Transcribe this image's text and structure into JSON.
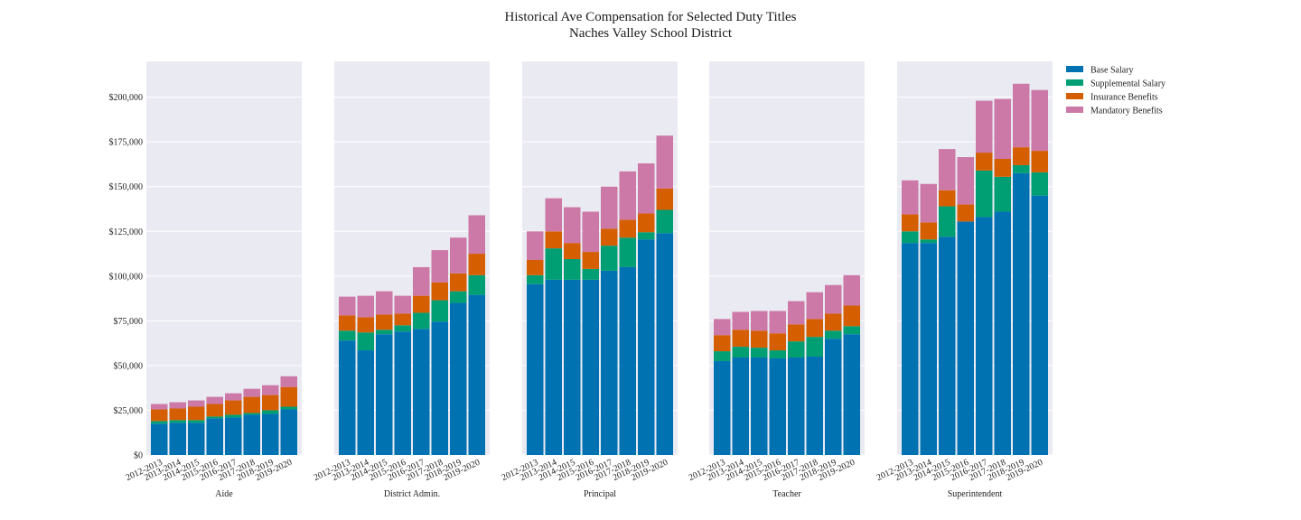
{
  "title": "Historical Ave Compensation for Selected Duty Titles",
  "subtitle": "Naches Valley School District",
  "colors": {
    "Base Salary": "#0072b2",
    "Supplemental Salary": "#009e73",
    "Insurance Benefits": "#d55e00",
    "Mandatory Benefits": "#cc79a7",
    "panel_background": "#eaeaf2",
    "grid": "#ffffff"
  },
  "chart_data": {
    "type": "bar",
    "stacked": true,
    "categories": [
      "2012-2013",
      "2013-2014",
      "2014-2015",
      "2015-2016",
      "2016-2017",
      "2017-2018",
      "2018-2019",
      "2019-2020"
    ],
    "ylim": [
      0,
      220000
    ],
    "yticks": [
      0,
      25000,
      50000,
      75000,
      100000,
      125000,
      150000,
      175000,
      200000
    ],
    "ytick_labels": [
      "$0",
      "$25,000",
      "$50,000",
      "$75,000",
      "$100,000",
      "$125,000",
      "$150,000",
      "$175,000",
      "$200,000"
    ],
    "legend": {
      "placement": "right",
      "entries": [
        "Base Salary",
        "Supplemental Salary",
        "Insurance Benefits",
        "Mandatory Benefits"
      ]
    },
    "grid": true,
    "panels": [
      {
        "xlabel": "Aide",
        "series": [
          {
            "name": "Base Salary",
            "values": [
              17500,
              18000,
              18000,
              20500,
              21000,
              22500,
              23000,
              25500
            ]
          },
          {
            "name": "Supplemental Salary",
            "values": [
              1500,
              1500,
              1500,
              1000,
              1500,
              1000,
              2000,
              1500
            ]
          },
          {
            "name": "Insurance Benefits",
            "values": [
              6500,
              6500,
              7500,
              7000,
              8000,
              9000,
              8500,
              11000
            ]
          },
          {
            "name": "Mandatory Benefits",
            "values": [
              3000,
              3500,
              3500,
              4000,
              4000,
              4500,
              5500,
              6000
            ]
          }
        ]
      },
      {
        "xlabel": "District Admin.",
        "series": [
          {
            "name": "Base Salary",
            "values": [
              64000,
              58500,
              67500,
              69000,
              70500,
              74500,
              85000,
              89500
            ]
          },
          {
            "name": "Supplemental Salary",
            "values": [
              5500,
              10000,
              2500,
              3500,
              9000,
              12000,
              6500,
              11000
            ]
          },
          {
            "name": "Insurance Benefits",
            "values": [
              8500,
              8500,
              8500,
              6500,
              9500,
              10000,
              10000,
              12000
            ]
          },
          {
            "name": "Mandatory Benefits",
            "values": [
              10500,
              12000,
              13000,
              10000,
              16000,
              18000,
              20000,
              21500
            ]
          }
        ]
      },
      {
        "xlabel": "Principal",
        "series": [
          {
            "name": "Base Salary",
            "values": [
              95500,
              98000,
              98000,
              98000,
              103000,
              105000,
              120500,
              124000
            ]
          },
          {
            "name": "Supplemental Salary",
            "values": [
              5000,
              17500,
              11500,
              6000,
              14000,
              16500,
              4000,
              13000
            ]
          },
          {
            "name": "Insurance Benefits",
            "values": [
              8500,
              9500,
              9000,
              9500,
              9500,
              10000,
              10500,
              12000
            ]
          },
          {
            "name": "Mandatory Benefits",
            "values": [
              16000,
              18500,
              20000,
              22500,
              23500,
              27000,
              28000,
              29500
            ]
          }
        ]
      },
      {
        "xlabel": "Teacher",
        "series": [
          {
            "name": "Base Salary",
            "values": [
              52500,
              54500,
              54500,
              54000,
              54500,
              55000,
              65000,
              67500
            ]
          },
          {
            "name": "Supplemental Salary",
            "values": [
              5500,
              6000,
              5500,
              4500,
              9000,
              11000,
              4500,
              4500
            ]
          },
          {
            "name": "Insurance Benefits",
            "values": [
              9000,
              9500,
              9500,
              9500,
              9500,
              10000,
              9500,
              11500
            ]
          },
          {
            "name": "Mandatory Benefits",
            "values": [
              9000,
              10000,
              11000,
              12500,
              13000,
              15000,
              16000,
              17000
            ]
          }
        ]
      },
      {
        "xlabel": "Superintendent",
        "series": [
          {
            "name": "Base Salary",
            "values": [
              118500,
              118500,
              122000,
              130500,
              133000,
              136000,
              157500,
              145000
            ]
          },
          {
            "name": "Supplemental Salary",
            "values": [
              6500,
              2000,
              17000,
              0,
              26000,
              19500,
              4500,
              13000
            ]
          },
          {
            "name": "Insurance Benefits",
            "values": [
              9500,
              9500,
              9000,
              9500,
              10000,
              10000,
              10000,
              12000
            ]
          },
          {
            "name": "Mandatory Benefits",
            "values": [
              19000,
              21500,
              23000,
              26500,
              29000,
              33500,
              35500,
              34000
            ]
          }
        ]
      }
    ]
  }
}
